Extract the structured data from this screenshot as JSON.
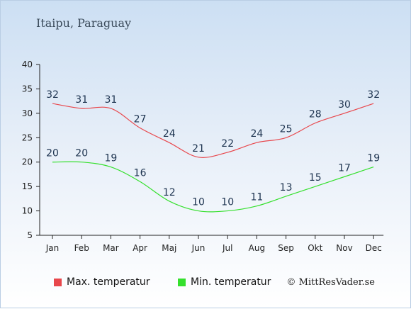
{
  "page": {
    "title": "Itaipu, Paraguay",
    "copyright": "© MittResVader.se"
  },
  "chart_data": {
    "type": "line",
    "categories": [
      "Jan",
      "Feb",
      "Mar",
      "Apr",
      "Maj",
      "Jun",
      "Jul",
      "Aug",
      "Sep",
      "Okt",
      "Nov",
      "Dec"
    ],
    "ylim": [
      5,
      40
    ],
    "yticks": [
      5,
      10,
      15,
      20,
      25,
      30,
      35,
      40
    ],
    "grid": false,
    "legend_position": "bottom-left",
    "series": [
      {
        "name": "Max. temperatur",
        "color": "#e8474c",
        "values": [
          32,
          31,
          31,
          27,
          24,
          21,
          22,
          24,
          25,
          28,
          30,
          32
        ]
      },
      {
        "name": "Min. temperatur",
        "color": "#35e02d",
        "values": [
          20,
          20,
          19,
          16,
          12,
          10,
          10,
          11,
          13,
          15,
          17,
          19
        ]
      }
    ]
  }
}
